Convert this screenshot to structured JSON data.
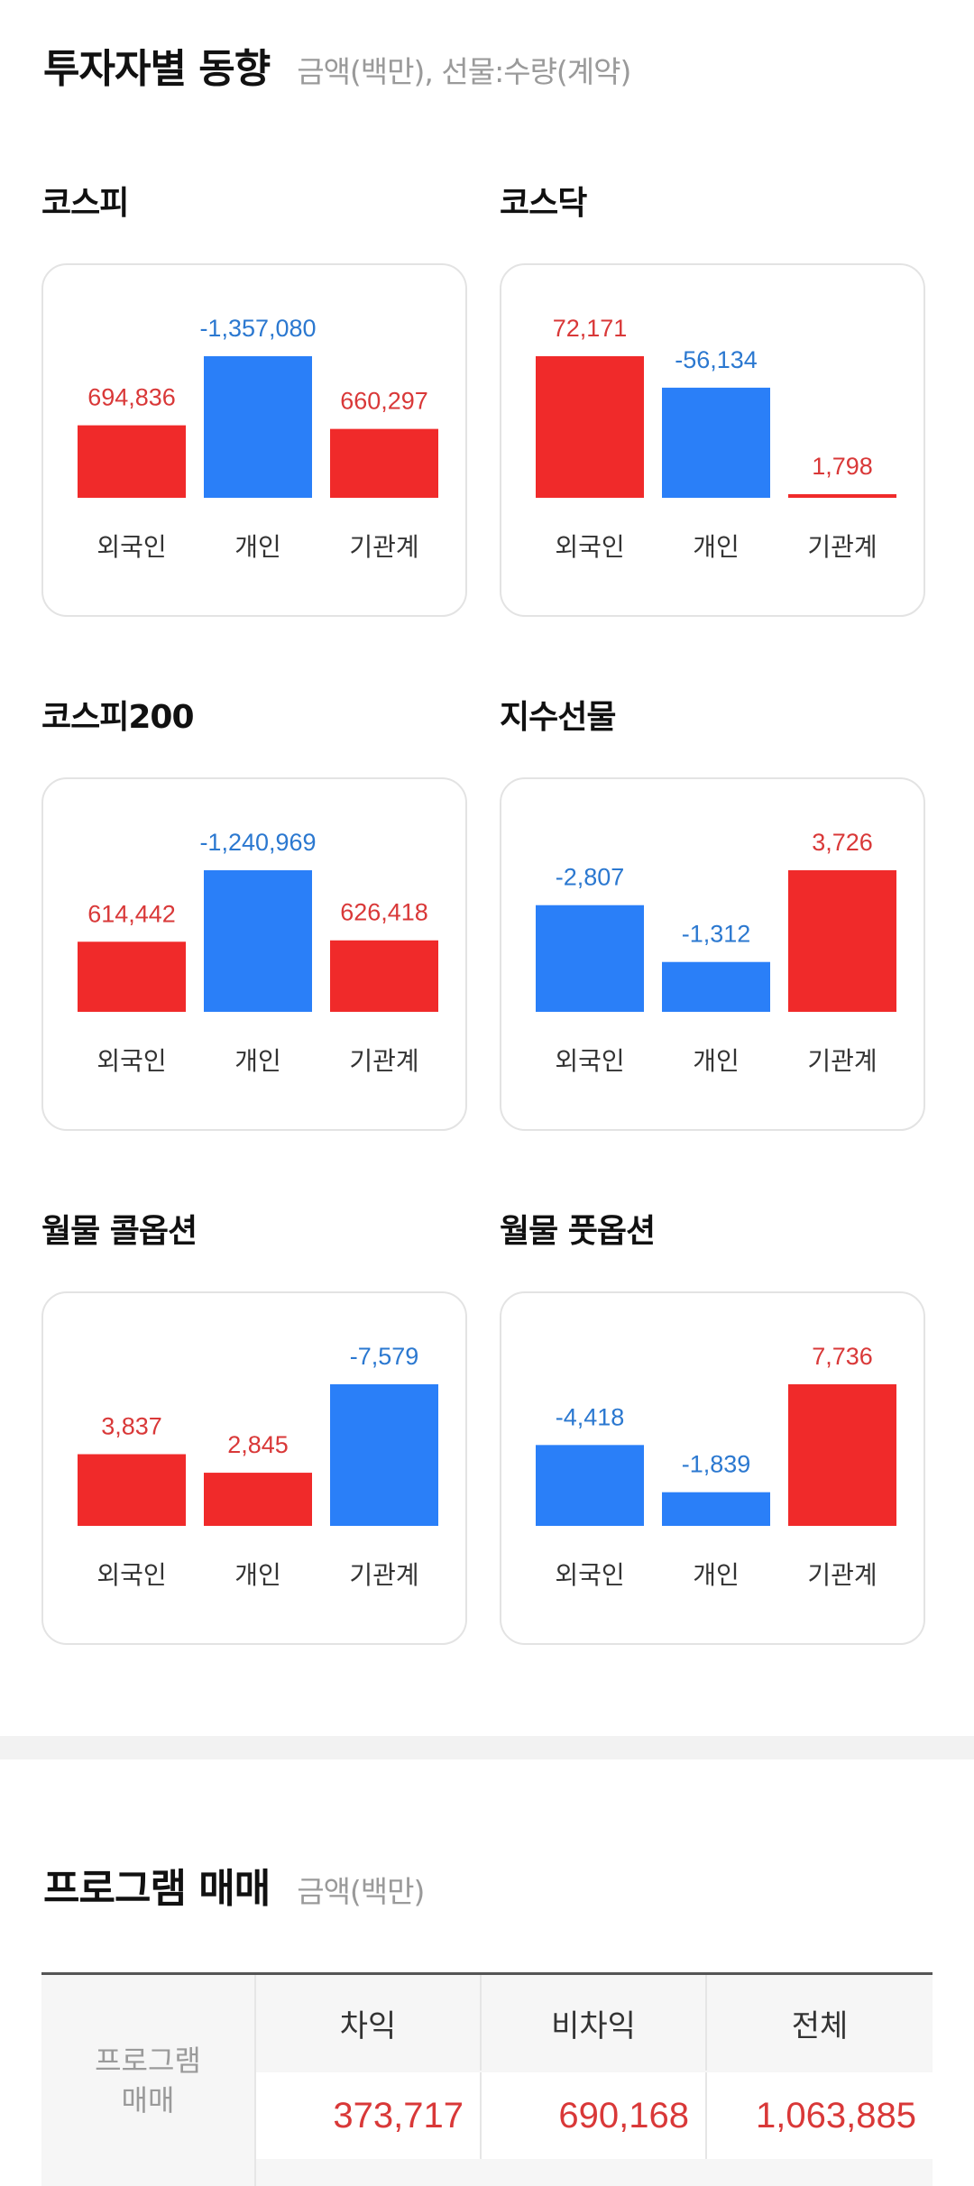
{
  "section1": {
    "title": "투자자별 동향",
    "subtitle": "금액(백만), 선물:수량(계약)"
  },
  "colors": {
    "positive": "#f02a2a",
    "negative": "#2a7ff8",
    "positive_text": "#d93838",
    "negative_text": "#2b78d0"
  },
  "chart_data": [
    {
      "type": "bar",
      "title": "코스피",
      "categories": [
        "외국인",
        "개인",
        "기관계"
      ],
      "values": [
        694836,
        -1357080,
        660297
      ],
      "labels": [
        "694,836",
        "-1,357,080",
        "660,297"
      ]
    },
    {
      "type": "bar",
      "title": "코스닥",
      "categories": [
        "외국인",
        "개인",
        "기관계"
      ],
      "values": [
        72171,
        -56134,
        1798
      ],
      "labels": [
        "72,171",
        "-56,134",
        "1,798"
      ]
    },
    {
      "type": "bar",
      "title": "코스피200",
      "categories": [
        "외국인",
        "개인",
        "기관계"
      ],
      "values": [
        614442,
        -1240969,
        626418
      ],
      "labels": [
        "614,442",
        "-1,240,969",
        "626,418"
      ]
    },
    {
      "type": "bar",
      "title": "지수선물",
      "categories": [
        "외국인",
        "개인",
        "기관계"
      ],
      "values": [
        -2807,
        -1312,
        3726
      ],
      "labels": [
        "-2,807",
        "-1,312",
        "3,726"
      ]
    },
    {
      "type": "bar",
      "title": "월물 콜옵션",
      "categories": [
        "외국인",
        "개인",
        "기관계"
      ],
      "values": [
        3837,
        2845,
        -7579
      ],
      "labels": [
        "3,837",
        "2,845",
        "-7,579"
      ]
    },
    {
      "type": "bar",
      "title": "월물 풋옵션",
      "categories": [
        "외국인",
        "개인",
        "기관계"
      ],
      "values": [
        -4418,
        -1839,
        7736
      ],
      "labels": [
        "-4,418",
        "-1,839",
        "7,736"
      ]
    }
  ],
  "section2": {
    "title": "프로그램 매매",
    "subtitle": "금액(백만)",
    "table": {
      "row_header_line1": "프로그램",
      "row_header_line2": "매매",
      "columns": [
        "차익",
        "비차익",
        "전체"
      ],
      "values": [
        "373,717",
        "690,168",
        "1,063,885"
      ]
    }
  }
}
